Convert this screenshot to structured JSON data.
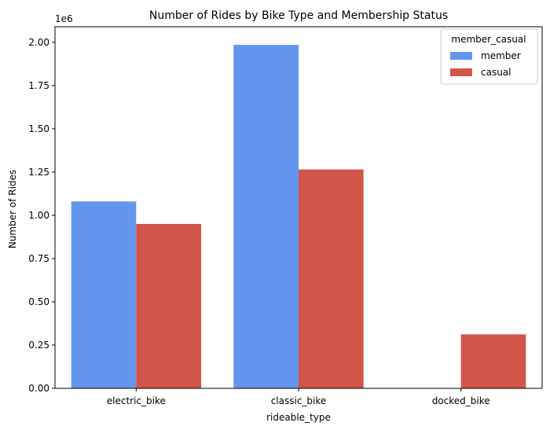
{
  "chart_data": {
    "type": "bar",
    "title": "Number of Rides by Bike Type and Membership Status",
    "xlabel": "rideable_type",
    "ylabel": "Number of Rides",
    "y_offset_label": "1e6",
    "categories": [
      "electric_bike",
      "classic_bike",
      "docked_bike"
    ],
    "series": [
      {
        "name": "member",
        "color": "#6495ED",
        "values": [
          1080000,
          1985000,
          0
        ]
      },
      {
        "name": "casual",
        "color": "#D2554A",
        "values": [
          950000,
          1265000,
          312000
        ]
      }
    ],
    "ylim": [
      0,
      2090000
    ],
    "yticks": [
      0,
      250000,
      500000,
      750000,
      1000000,
      1250000,
      1500000,
      1750000,
      2000000
    ],
    "ytick_labels": [
      "0.00",
      "0.25",
      "0.50",
      "0.75",
      "1.00",
      "1.25",
      "1.50",
      "1.75",
      "2.00"
    ],
    "legend": {
      "title": "member_casual",
      "position": "top-right"
    },
    "grid": false
  }
}
